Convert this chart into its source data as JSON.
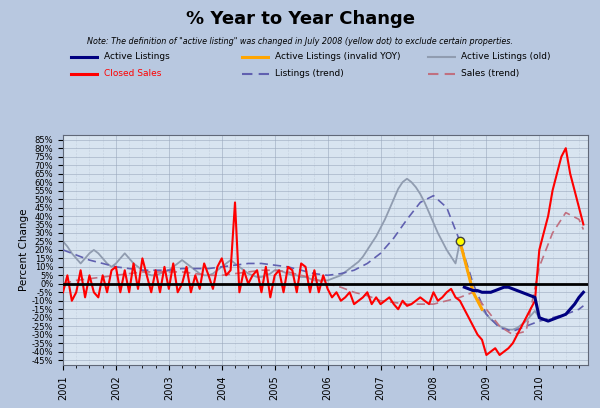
{
  "title": "% Year to Year Change",
  "note": "Note: The definition of \"active listing\" was changed in July 2008 (yellow dot) to exclude certain properties.",
  "ylabel": "Percent Change",
  "background_color": "#b8c8e0",
  "plot_bg_color": "#d8e4f0",
  "yticks": [
    -45,
    -40,
    -35,
    -30,
    -25,
    -20,
    -15,
    -10,
    -5,
    0,
    5,
    10,
    15,
    20,
    25,
    30,
    35,
    40,
    45,
    50,
    55,
    60,
    65,
    70,
    75,
    80,
    85
  ],
  "ylim": [
    -48,
    88
  ],
  "xlim_start": 2001.0,
  "xlim_end": 2010.92,
  "active_listings_color": "#000080",
  "active_listings_invalid_color": "#FFA500",
  "active_listings_old_color": "#909cb0",
  "closed_sales_color": "#FF0000",
  "listings_trend_color": "#6060b0",
  "sales_trend_color": "#c07080",
  "active_listings_x": [
    2008.583,
    2008.667,
    2008.75,
    2008.833,
    2008.917,
    2009.0,
    2009.083,
    2009.167,
    2009.25,
    2009.333,
    2009.417,
    2009.5,
    2009.583,
    2009.667,
    2009.75,
    2009.833,
    2009.917,
    2010.0,
    2010.083,
    2010.167,
    2010.25,
    2010.333,
    2010.417,
    2010.5,
    2010.583,
    2010.667,
    2010.75,
    2010.833
  ],
  "active_listings_y": [
    -2,
    -3,
    -4,
    -4,
    -5,
    -5,
    -5,
    -4,
    -3,
    -2,
    -2,
    -3,
    -4,
    -5,
    -6,
    -7,
    -8,
    -20,
    -21,
    -22,
    -21,
    -20,
    -19,
    -18,
    -15,
    -12,
    -8,
    -5
  ],
  "active_listings_invalid_x": [
    2008.5,
    2008.583,
    2008.667,
    2008.75,
    2008.833,
    2008.917
  ],
  "active_listings_invalid_y": [
    25,
    15,
    5,
    -5,
    -10,
    -15
  ],
  "active_listings_old_x": [
    2001.0,
    2001.083,
    2001.167,
    2001.25,
    2001.333,
    2001.417,
    2001.5,
    2001.583,
    2001.667,
    2001.75,
    2001.833,
    2001.917,
    2002.0,
    2002.083,
    2002.167,
    2002.25,
    2002.333,
    2002.417,
    2002.5,
    2002.583,
    2002.667,
    2002.75,
    2002.833,
    2002.917,
    2003.0,
    2003.083,
    2003.167,
    2003.25,
    2003.333,
    2003.417,
    2003.5,
    2003.583,
    2003.667,
    2003.75,
    2003.833,
    2003.917,
    2004.0,
    2004.083,
    2004.167,
    2004.25,
    2004.333,
    2004.417,
    2004.5,
    2004.583,
    2004.667,
    2004.75,
    2004.833,
    2004.917,
    2005.0,
    2005.083,
    2005.167,
    2005.25,
    2005.333,
    2005.417,
    2005.5,
    2005.583,
    2005.667,
    2005.75,
    2005.833,
    2005.917,
    2006.0,
    2006.083,
    2006.167,
    2006.25,
    2006.333,
    2006.417,
    2006.5,
    2006.583,
    2006.667,
    2006.75,
    2006.833,
    2006.917,
    2007.0,
    2007.083,
    2007.167,
    2007.25,
    2007.333,
    2007.417,
    2007.5,
    2007.583,
    2007.667,
    2007.75,
    2007.833,
    2007.917,
    2008.0,
    2008.083,
    2008.167,
    2008.25,
    2008.333,
    2008.417,
    2008.5,
    2008.583,
    2008.667,
    2008.75,
    2008.833,
    2008.917,
    2009.0,
    2009.083,
    2009.167,
    2009.25,
    2009.333,
    2009.417,
    2009.5,
    2009.583,
    2009.667,
    2009.75,
    2009.833,
    2009.917,
    2010.0,
    2010.083,
    2010.167,
    2010.25,
    2010.333,
    2010.417,
    2010.5,
    2010.583,
    2010.667,
    2010.75,
    2010.833
  ],
  "active_listings_old_y": [
    25,
    22,
    18,
    15,
    12,
    15,
    18,
    20,
    18,
    15,
    12,
    10,
    12,
    15,
    18,
    15,
    12,
    10,
    8,
    6,
    5,
    5,
    6,
    7,
    8,
    10,
    12,
    14,
    12,
    10,
    8,
    6,
    5,
    5,
    6,
    8,
    10,
    12,
    14,
    12,
    10,
    8,
    6,
    5,
    4,
    4,
    5,
    6,
    8,
    8,
    7,
    6,
    5,
    5,
    4,
    4,
    3,
    2,
    2,
    2,
    2,
    3,
    4,
    5,
    7,
    9,
    11,
    13,
    16,
    20,
    24,
    28,
    33,
    38,
    44,
    50,
    56,
    60,
    62,
    60,
    57,
    53,
    48,
    42,
    36,
    30,
    25,
    20,
    16,
    12,
    25,
    15,
    5,
    -5,
    -10,
    -15,
    -18,
    -21,
    -23,
    -25,
    -26,
    -27,
    -27,
    -26,
    -24,
    -22,
    -19,
    -16,
    -20,
    -21,
    -22,
    -21,
    -20,
    -19,
    -18,
    -15,
    -12,
    -8,
    -5
  ],
  "closed_sales_x": [
    2001.0,
    2001.083,
    2001.167,
    2001.25,
    2001.333,
    2001.417,
    2001.5,
    2001.583,
    2001.667,
    2001.75,
    2001.833,
    2001.917,
    2002.0,
    2002.083,
    2002.167,
    2002.25,
    2002.333,
    2002.417,
    2002.5,
    2002.583,
    2002.667,
    2002.75,
    2002.833,
    2002.917,
    2003.0,
    2003.083,
    2003.167,
    2003.25,
    2003.333,
    2003.417,
    2003.5,
    2003.583,
    2003.667,
    2003.75,
    2003.833,
    2003.917,
    2004.0,
    2004.083,
    2004.167,
    2004.25,
    2004.333,
    2004.417,
    2004.5,
    2004.583,
    2004.667,
    2004.75,
    2004.833,
    2004.917,
    2005.0,
    2005.083,
    2005.167,
    2005.25,
    2005.333,
    2005.417,
    2005.5,
    2005.583,
    2005.667,
    2005.75,
    2005.833,
    2005.917,
    2006.0,
    2006.083,
    2006.167,
    2006.25,
    2006.333,
    2006.417,
    2006.5,
    2006.583,
    2006.667,
    2006.75,
    2006.833,
    2006.917,
    2007.0,
    2007.083,
    2007.167,
    2007.25,
    2007.333,
    2007.417,
    2007.5,
    2007.583,
    2007.667,
    2007.75,
    2007.833,
    2007.917,
    2008.0,
    2008.083,
    2008.167,
    2008.25,
    2008.333,
    2008.417,
    2008.5,
    2008.583,
    2008.667,
    2008.75,
    2008.833,
    2008.917,
    2009.0,
    2009.083,
    2009.167,
    2009.25,
    2009.333,
    2009.417,
    2009.5,
    2009.583,
    2009.667,
    2009.75,
    2009.833,
    2009.917,
    2010.0,
    2010.083,
    2010.167,
    2010.25,
    2010.333,
    2010.417,
    2010.5,
    2010.583,
    2010.667,
    2010.75,
    2010.833
  ],
  "closed_sales_y": [
    -5,
    5,
    -10,
    -5,
    8,
    -8,
    5,
    -5,
    -8,
    5,
    -5,
    8,
    10,
    -5,
    8,
    -5,
    12,
    -3,
    15,
    5,
    -5,
    8,
    -5,
    10,
    -3,
    12,
    -5,
    0,
    10,
    -5,
    5,
    -3,
    12,
    5,
    -3,
    10,
    15,
    5,
    8,
    48,
    -5,
    8,
    0,
    5,
    8,
    -5,
    10,
    -8,
    5,
    8,
    -5,
    10,
    8,
    -5,
    12,
    10,
    -5,
    8,
    -5,
    5,
    -3,
    -8,
    -5,
    -10,
    -8,
    -5,
    -12,
    -10,
    -8,
    -5,
    -12,
    -8,
    -12,
    -10,
    -8,
    -12,
    -15,
    -10,
    -13,
    -12,
    -10,
    -8,
    -10,
    -12,
    -5,
    -10,
    -8,
    -5,
    -3,
    -8,
    -10,
    -15,
    -20,
    -25,
    -30,
    -33,
    -42,
    -40,
    -38,
    -42,
    -40,
    -38,
    -35,
    -30,
    -25,
    -20,
    -15,
    -10,
    20,
    30,
    40,
    55,
    65,
    75,
    80,
    65,
    55,
    45,
    35
  ],
  "listings_trend_x": [
    2001.0,
    2001.25,
    2001.5,
    2001.75,
    2002.0,
    2002.25,
    2002.5,
    2002.75,
    2003.0,
    2003.25,
    2003.5,
    2003.75,
    2004.0,
    2004.25,
    2004.5,
    2004.75,
    2005.0,
    2005.25,
    2005.5,
    2005.75,
    2006.0,
    2006.25,
    2006.5,
    2006.75,
    2007.0,
    2007.25,
    2007.5,
    2007.75,
    2008.0,
    2008.25,
    2008.5,
    2008.75,
    2009.0,
    2009.25,
    2009.5,
    2009.75,
    2010.0,
    2010.25,
    2010.5,
    2010.75,
    2010.833
  ],
  "listings_trend_y": [
    20,
    17,
    14,
    12,
    10,
    9,
    8,
    8,
    8,
    9,
    9,
    9,
    10,
    11,
    12,
    12,
    11,
    10,
    8,
    6,
    5,
    6,
    8,
    12,
    18,
    27,
    38,
    48,
    52,
    45,
    25,
    0,
    -18,
    -26,
    -28,
    -25,
    -22,
    -20,
    -18,
    -15,
    -13
  ],
  "sales_trend_x": [
    2001.0,
    2001.25,
    2001.5,
    2001.75,
    2002.0,
    2002.25,
    2002.5,
    2002.75,
    2003.0,
    2003.25,
    2003.5,
    2003.75,
    2004.0,
    2004.25,
    2004.5,
    2004.75,
    2005.0,
    2005.25,
    2005.5,
    2005.75,
    2006.0,
    2006.25,
    2006.5,
    2006.75,
    2007.0,
    2007.25,
    2007.5,
    2007.75,
    2008.0,
    2008.25,
    2008.5,
    2008.75,
    2009.0,
    2009.25,
    2009.5,
    2009.75,
    2010.0,
    2010.25,
    2010.5,
    2010.75,
    2010.833
  ],
  "sales_trend_y": [
    0,
    2,
    3,
    4,
    5,
    6,
    7,
    7,
    7,
    7,
    6,
    5,
    5,
    6,
    7,
    8,
    8,
    7,
    5,
    3,
    0,
    -2,
    -5,
    -7,
    -10,
    -11,
    -12,
    -12,
    -12,
    -10,
    -8,
    -5,
    -15,
    -25,
    -30,
    -28,
    10,
    30,
    42,
    38,
    32
  ],
  "yellow_dot_x": 2008.5,
  "yellow_dot_y": 25
}
